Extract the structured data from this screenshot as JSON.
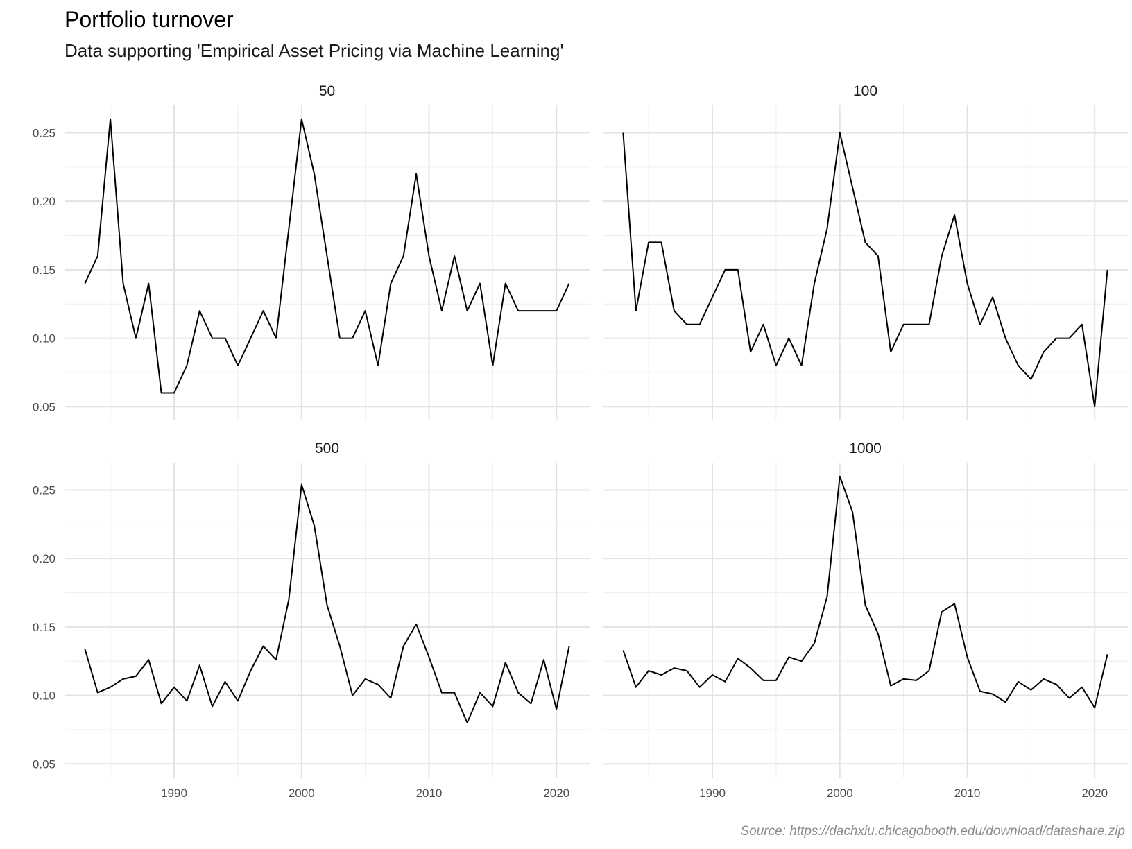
{
  "title": "Portfolio turnover",
  "subtitle": "Data supporting 'Empirical Asset Pricing via Machine Learning'",
  "caption": "Source: https://dachxiu.chicagobooth.edu/download/datashare.zip",
  "chart_data": {
    "type": "line",
    "layout": "facet-grid 2x2",
    "grid": true,
    "line_color": "#000000",
    "xlabel": "",
    "ylabel": "",
    "xlim": [
      1981.4,
      2022.6
    ],
    "ylim": [
      0.04,
      0.27
    ],
    "x_ticks": [
      1990,
      2000,
      2010,
      2020
    ],
    "y_ticks": [
      0.05,
      0.1,
      0.15,
      0.2,
      0.25
    ],
    "x_tick_labels": [
      "1990",
      "2000",
      "2010",
      "2020"
    ],
    "y_tick_labels": [
      "0.05",
      "0.10",
      "0.15",
      "0.20",
      "0.25"
    ],
    "x": [
      1983,
      1984,
      1985,
      1986,
      1987,
      1988,
      1989,
      1990,
      1991,
      1992,
      1993,
      1994,
      1995,
      1996,
      1997,
      1998,
      1999,
      2000,
      2001,
      2002,
      2003,
      2004,
      2005,
      2006,
      2007,
      2008,
      2009,
      2010,
      2011,
      2012,
      2013,
      2014,
      2015,
      2016,
      2017,
      2018,
      2019,
      2020,
      2021
    ],
    "panels": [
      {
        "name": "50",
        "values": [
          0.14,
          0.16,
          0.26,
          0.14,
          0.1,
          0.14,
          0.06,
          0.06,
          0.08,
          0.12,
          0.1,
          0.1,
          0.08,
          0.1,
          0.12,
          0.1,
          0.18,
          0.26,
          0.22,
          0.16,
          0.1,
          0.1,
          0.12,
          0.08,
          0.14,
          0.16,
          0.22,
          0.16,
          0.12,
          0.16,
          0.12,
          0.14,
          0.08,
          0.14,
          0.12,
          0.12,
          0.12,
          0.12,
          0.14
        ]
      },
      {
        "name": "100",
        "values": [
          0.25,
          0.12,
          0.17,
          0.17,
          0.12,
          0.11,
          0.11,
          0.13,
          0.15,
          0.15,
          0.09,
          0.11,
          0.08,
          0.1,
          0.08,
          0.14,
          0.18,
          0.25,
          0.21,
          0.17,
          0.16,
          0.09,
          0.11,
          0.11,
          0.11,
          0.16,
          0.19,
          0.14,
          0.11,
          0.13,
          0.1,
          0.08,
          0.07,
          0.09,
          0.1,
          0.1,
          0.11,
          0.05,
          0.15
        ]
      },
      {
        "name": "500",
        "values": [
          0.134,
          0.102,
          0.106,
          0.112,
          0.114,
          0.126,
          0.094,
          0.106,
          0.096,
          0.122,
          0.092,
          0.11,
          0.096,
          0.118,
          0.136,
          0.126,
          0.17,
          0.254,
          0.224,
          0.166,
          0.136,
          0.1,
          0.112,
          0.108,
          0.098,
          0.136,
          0.152,
          0.128,
          0.102,
          0.102,
          0.08,
          0.102,
          0.092,
          0.124,
          0.102,
          0.094,
          0.126,
          0.09,
          0.136
        ]
      },
      {
        "name": "1000",
        "values": [
          0.133,
          0.106,
          0.118,
          0.115,
          0.12,
          0.118,
          0.106,
          0.115,
          0.11,
          0.127,
          0.12,
          0.111,
          0.111,
          0.128,
          0.125,
          0.138,
          0.172,
          0.26,
          0.234,
          0.166,
          0.145,
          0.107,
          0.112,
          0.111,
          0.118,
          0.161,
          0.167,
          0.128,
          0.103,
          0.101,
          0.095,
          0.11,
          0.104,
          0.112,
          0.108,
          0.098,
          0.106,
          0.091,
          0.13
        ]
      }
    ]
  }
}
